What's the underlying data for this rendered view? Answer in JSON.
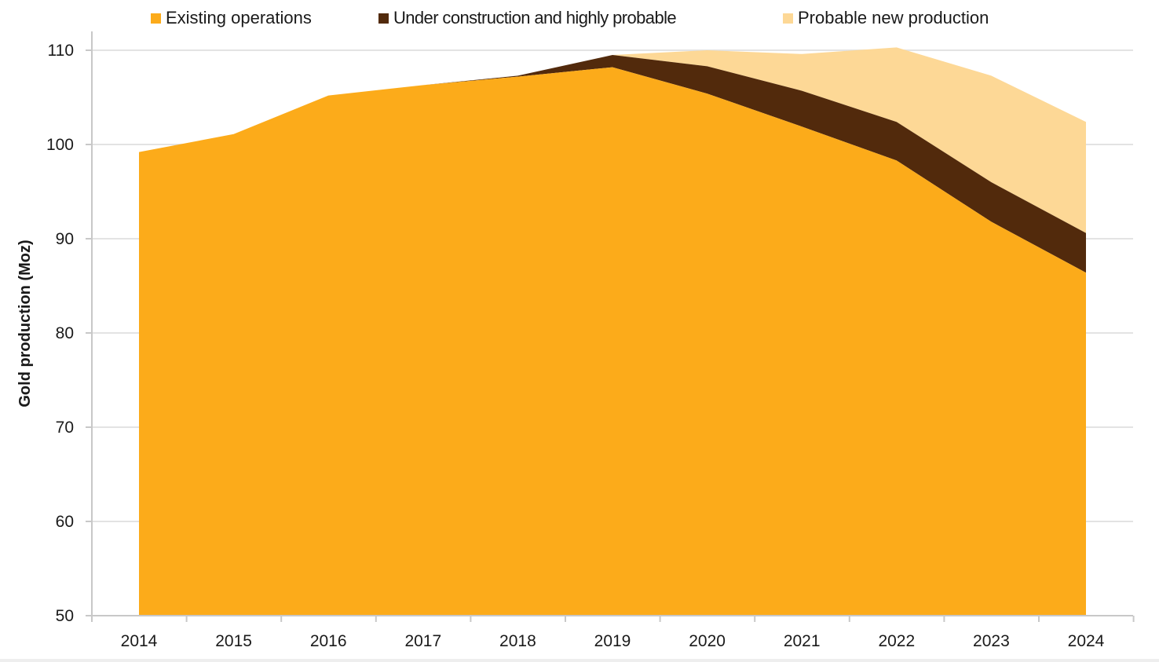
{
  "chart_data": {
    "type": "area",
    "stacked": true,
    "title": "",
    "xlabel": "",
    "ylabel": "Gold production (Moz)",
    "x": [
      "2014",
      "2015",
      "2016",
      "2017",
      "2018",
      "2019",
      "2020",
      "2021",
      "2022",
      "2023",
      "2024"
    ],
    "ylim": [
      50,
      110
    ],
    "yticks": [
      50,
      60,
      70,
      80,
      90,
      100,
      110
    ],
    "grid": true,
    "legend_position": "top",
    "series": [
      {
        "name": "Existing operations",
        "color": "#FCAB1A",
        "values": [
          99.2,
          101.1,
          105.2,
          106.3,
          107.2,
          108.2,
          105.4,
          101.9,
          98.3,
          91.8,
          86.4
        ]
      },
      {
        "name": "Under construction and highly probable",
        "color": "#522A0C",
        "values": [
          0,
          0,
          0,
          0,
          0.1,
          1.3,
          2.9,
          3.8,
          4.1,
          4.2,
          4.2
        ]
      },
      {
        "name": "Probable new production",
        "color": "#FDD896",
        "values": [
          0,
          0,
          0,
          0,
          0,
          0,
          1.7,
          3.9,
          7.9,
          11.3,
          11.8
        ]
      }
    ]
  }
}
